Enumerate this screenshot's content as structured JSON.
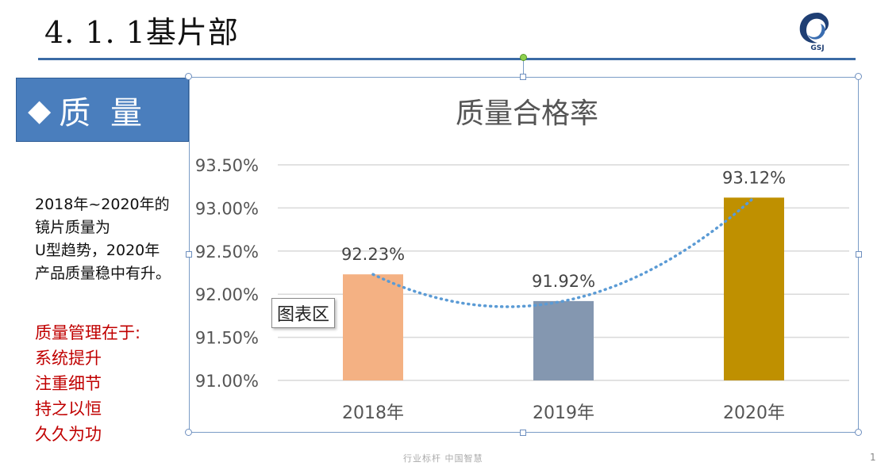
{
  "slide": {
    "title": "4. 1. 1基片部",
    "logo_text": "GSJ",
    "section_label": "质 量",
    "section_icon": "diamond-icon",
    "description": [
      "2018年~2020年的",
      "镜片质量为",
      "U型趋势，2020年",
      "产品质量稳中有升。"
    ],
    "points": [
      "质量管理在于:",
      "系统提升",
      "注重细节",
      "持之以恒",
      "久久为功"
    ],
    "tooltip": "图表区",
    "footer": "行业标杆  中国智慧",
    "page_number": "1"
  },
  "chart_data": {
    "type": "bar",
    "title": "质量合格率",
    "categories": [
      "2018年",
      "2019年",
      "2020年"
    ],
    "values": [
      92.23,
      91.92,
      93.12
    ],
    "value_labels": [
      "92.23%",
      "91.92%",
      "93.12%"
    ],
    "colors": [
      "#f4b183",
      "#8497b0",
      "#bf9000"
    ],
    "ylim": [
      91.0,
      93.5
    ],
    "yticks": [
      91.0,
      91.5,
      92.0,
      92.5,
      93.0,
      93.5
    ],
    "ytick_labels": [
      "91.00%",
      "91.50%",
      "92.00%",
      "92.50%",
      "93.00%",
      "93.50%"
    ],
    "trendline": "polynomial",
    "trendline_color": "#5b9bd5",
    "grid": true,
    "legend": "none"
  }
}
